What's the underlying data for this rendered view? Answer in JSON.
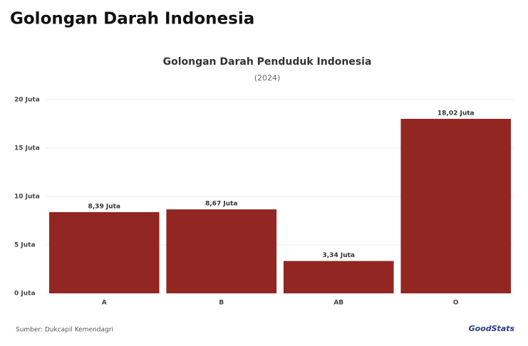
{
  "header": {
    "title": "Golongan Darah Indonesia"
  },
  "chart_data": {
    "type": "bar",
    "title": "Golongan Darah Penduduk Indonesia",
    "subtitle": "(2024)",
    "categories": [
      "A",
      "B",
      "AB",
      "O"
    ],
    "values": [
      8.39,
      8.67,
      3.34,
      18.02
    ],
    "value_labels": [
      "8,39 Juta",
      "8,67 Juta",
      "3,34 Juta",
      "18,02 Juta"
    ],
    "color": "#922622",
    "ylim": [
      0,
      20
    ],
    "yticks": [
      {
        "value": 0,
        "label": "0 Juta"
      },
      {
        "value": 5,
        "label": "5 Juta"
      },
      {
        "value": 10,
        "label": "10 Juta"
      },
      {
        "value": 15,
        "label": "15 Juta"
      },
      {
        "value": 20,
        "label": "20 Juta"
      }
    ],
    "grid": true
  },
  "footer": {
    "source": "Sumber: Dukcapil Kemendagri",
    "logo": "GoodStats"
  }
}
